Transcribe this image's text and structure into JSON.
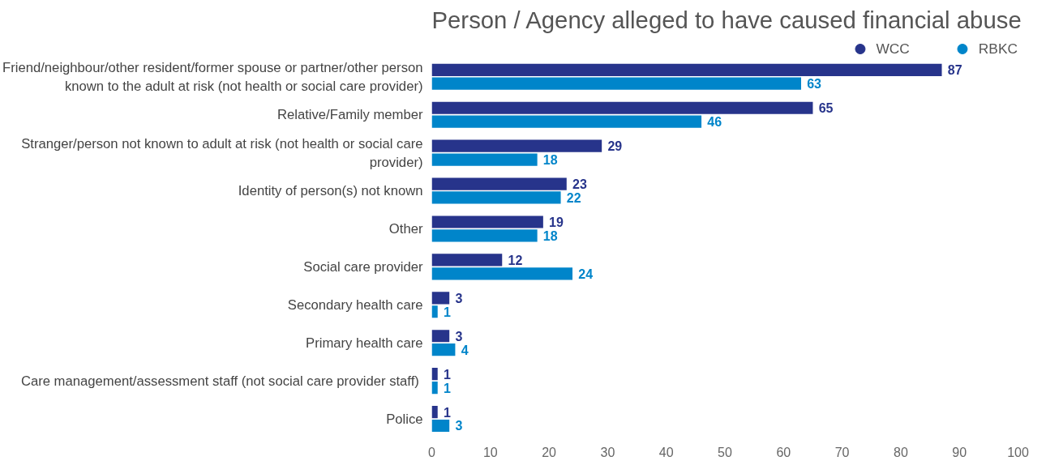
{
  "chart_data": {
    "type": "bar",
    "orientation": "horizontal",
    "title": "Person / Agency alleged to have caused financial abuse",
    "categories": [
      "Friend/neighbour/other resident/former spouse or partner/other person known to the adult at risk (not health or social care provider)",
      "Relative/Family member",
      "Stranger/person not known to adult at risk (not health or social care provider)",
      "Identity of person(s) not known",
      "Other",
      "Social care provider",
      "Secondary health care",
      "Primary health care",
      "Care management/assessment staff  (not social care provider staff)",
      "Police"
    ],
    "series": [
      {
        "name": "WCC",
        "color": "#27348b",
        "values": [
          87,
          65,
          29,
          23,
          19,
          12,
          3,
          3,
          1,
          1
        ]
      },
      {
        "name": "RBKC",
        "color": "#0085ca",
        "values": [
          63,
          46,
          18,
          22,
          18,
          24,
          1,
          4,
          1,
          3
        ]
      }
    ],
    "xlim": [
      0,
      100
    ],
    "xticks": [
      0,
      10,
      20,
      30,
      40,
      50,
      60,
      70,
      80,
      90,
      100
    ],
    "grid": false,
    "legend": "top right",
    "data_labels": true
  }
}
